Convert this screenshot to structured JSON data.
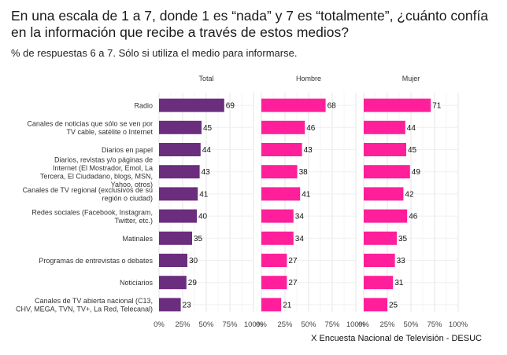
{
  "chart_data": {
    "type": "bar",
    "orientation": "horizontal",
    "title": "En una escala de 1 a 7, donde 1 es “nada” y 7 es “totalmente”, ¿cuánto confía en la información que recibe a través de estos medios?",
    "subtitle": "% de respuestas 6 a 7. Sólo si utiliza el medio para informarse.",
    "caption": "X Encuesta Nacional de Televisión - DESUC",
    "categories": [
      [
        "Radio"
      ],
      [
        "Canales de noticias que sólo se ven por",
        "TV cable, satélite o Internet"
      ],
      [
        "Diarios en papel"
      ],
      [
        "Diarios, revistas y/o páginas de",
        "Internet (El Mostrador, Emol, La",
        "Tercera, El Ciudadano, blogs, MSN,",
        "Yahoo, otros)"
      ],
      [
        "Canales de TV regional (exclusivos de su",
        "región o ciudad)"
      ],
      [
        "Redes sociales (Facebook, Instagram,",
        "Twitter, etc.)"
      ],
      [
        "Matinales"
      ],
      [
        "Programas de entrevistas o debates"
      ],
      [
        "Noticiarios"
      ],
      [
        "Canales de TV abierta nacional (C13,",
        "CHV, MEGA, TVN, TV+, La Red, Telecanal)"
      ]
    ],
    "series": [
      {
        "name": "Total",
        "color": "#6b2d7e",
        "values": [
          69,
          45,
          44,
          43,
          41,
          40,
          35,
          30,
          29,
          23
        ]
      },
      {
        "name": "Hombre",
        "color": "#ff1f9a",
        "values": [
          68,
          46,
          43,
          38,
          41,
          34,
          34,
          27,
          27,
          21
        ]
      },
      {
        "name": "Mujer",
        "color": "#ff1f9a",
        "values": [
          71,
          44,
          45,
          49,
          42,
          46,
          35,
          33,
          31,
          25
        ]
      }
    ],
    "xlim": [
      0,
      100
    ],
    "xticks": [
      "0%",
      "25%",
      "50%",
      "75%",
      "100%"
    ],
    "grid": true
  }
}
